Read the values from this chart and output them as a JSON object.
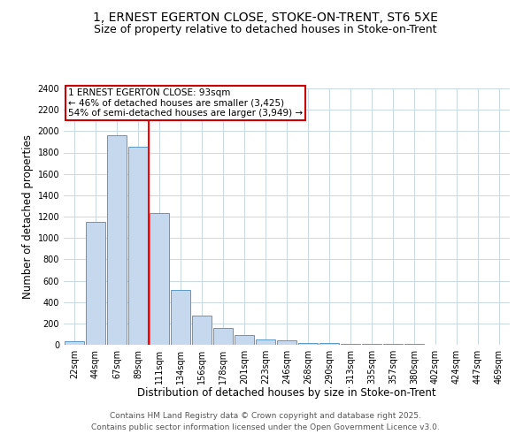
{
  "title": "1, ERNEST EGERTON CLOSE, STOKE-ON-TRENT, ST6 5XE",
  "subtitle": "Size of property relative to detached houses in Stoke-on-Trent",
  "xlabel": "Distribution of detached houses by size in Stoke-on-Trent",
  "ylabel": "Number of detached properties",
  "bins": [
    "22sqm",
    "44sqm",
    "67sqm",
    "89sqm",
    "111sqm",
    "134sqm",
    "156sqm",
    "178sqm",
    "201sqm",
    "223sqm",
    "246sqm",
    "268sqm",
    "290sqm",
    "313sqm",
    "335sqm",
    "357sqm",
    "380sqm",
    "402sqm",
    "424sqm",
    "447sqm",
    "469sqm"
  ],
  "values": [
    30,
    1150,
    1960,
    1850,
    1230,
    510,
    275,
    155,
    90,
    50,
    40,
    20,
    15,
    10,
    8,
    6,
    5,
    4,
    3,
    3,
    2
  ],
  "bar_color": "#c5d8ed",
  "bar_edge_color": "#5a9ac5",
  "red_line_bin_index": 3,
  "annotation_text": "1 ERNEST EGERTON CLOSE: 93sqm\n← 46% of detached houses are smaller (3,425)\n54% of semi-detached houses are larger (3,949) →",
  "annotation_box_color": "#ffffff",
  "annotation_box_edge_color": "#cc0000",
  "footer_line1": "Contains HM Land Registry data © Crown copyright and database right 2025.",
  "footer_line2": "Contains public sector information licensed under the Open Government Licence v3.0.",
  "ylim": [
    0,
    2400
  ],
  "yticks": [
    0,
    200,
    400,
    600,
    800,
    1000,
    1200,
    1400,
    1600,
    1800,
    2000,
    2200,
    2400
  ],
  "background_color": "#ffffff",
  "grid_color": "#c8d8e8",
  "title_fontsize": 10,
  "subtitle_fontsize": 9,
  "axis_label_fontsize": 8.5,
  "tick_fontsize": 7,
  "footer_fontsize": 6.5,
  "annotation_fontsize": 7.5
}
